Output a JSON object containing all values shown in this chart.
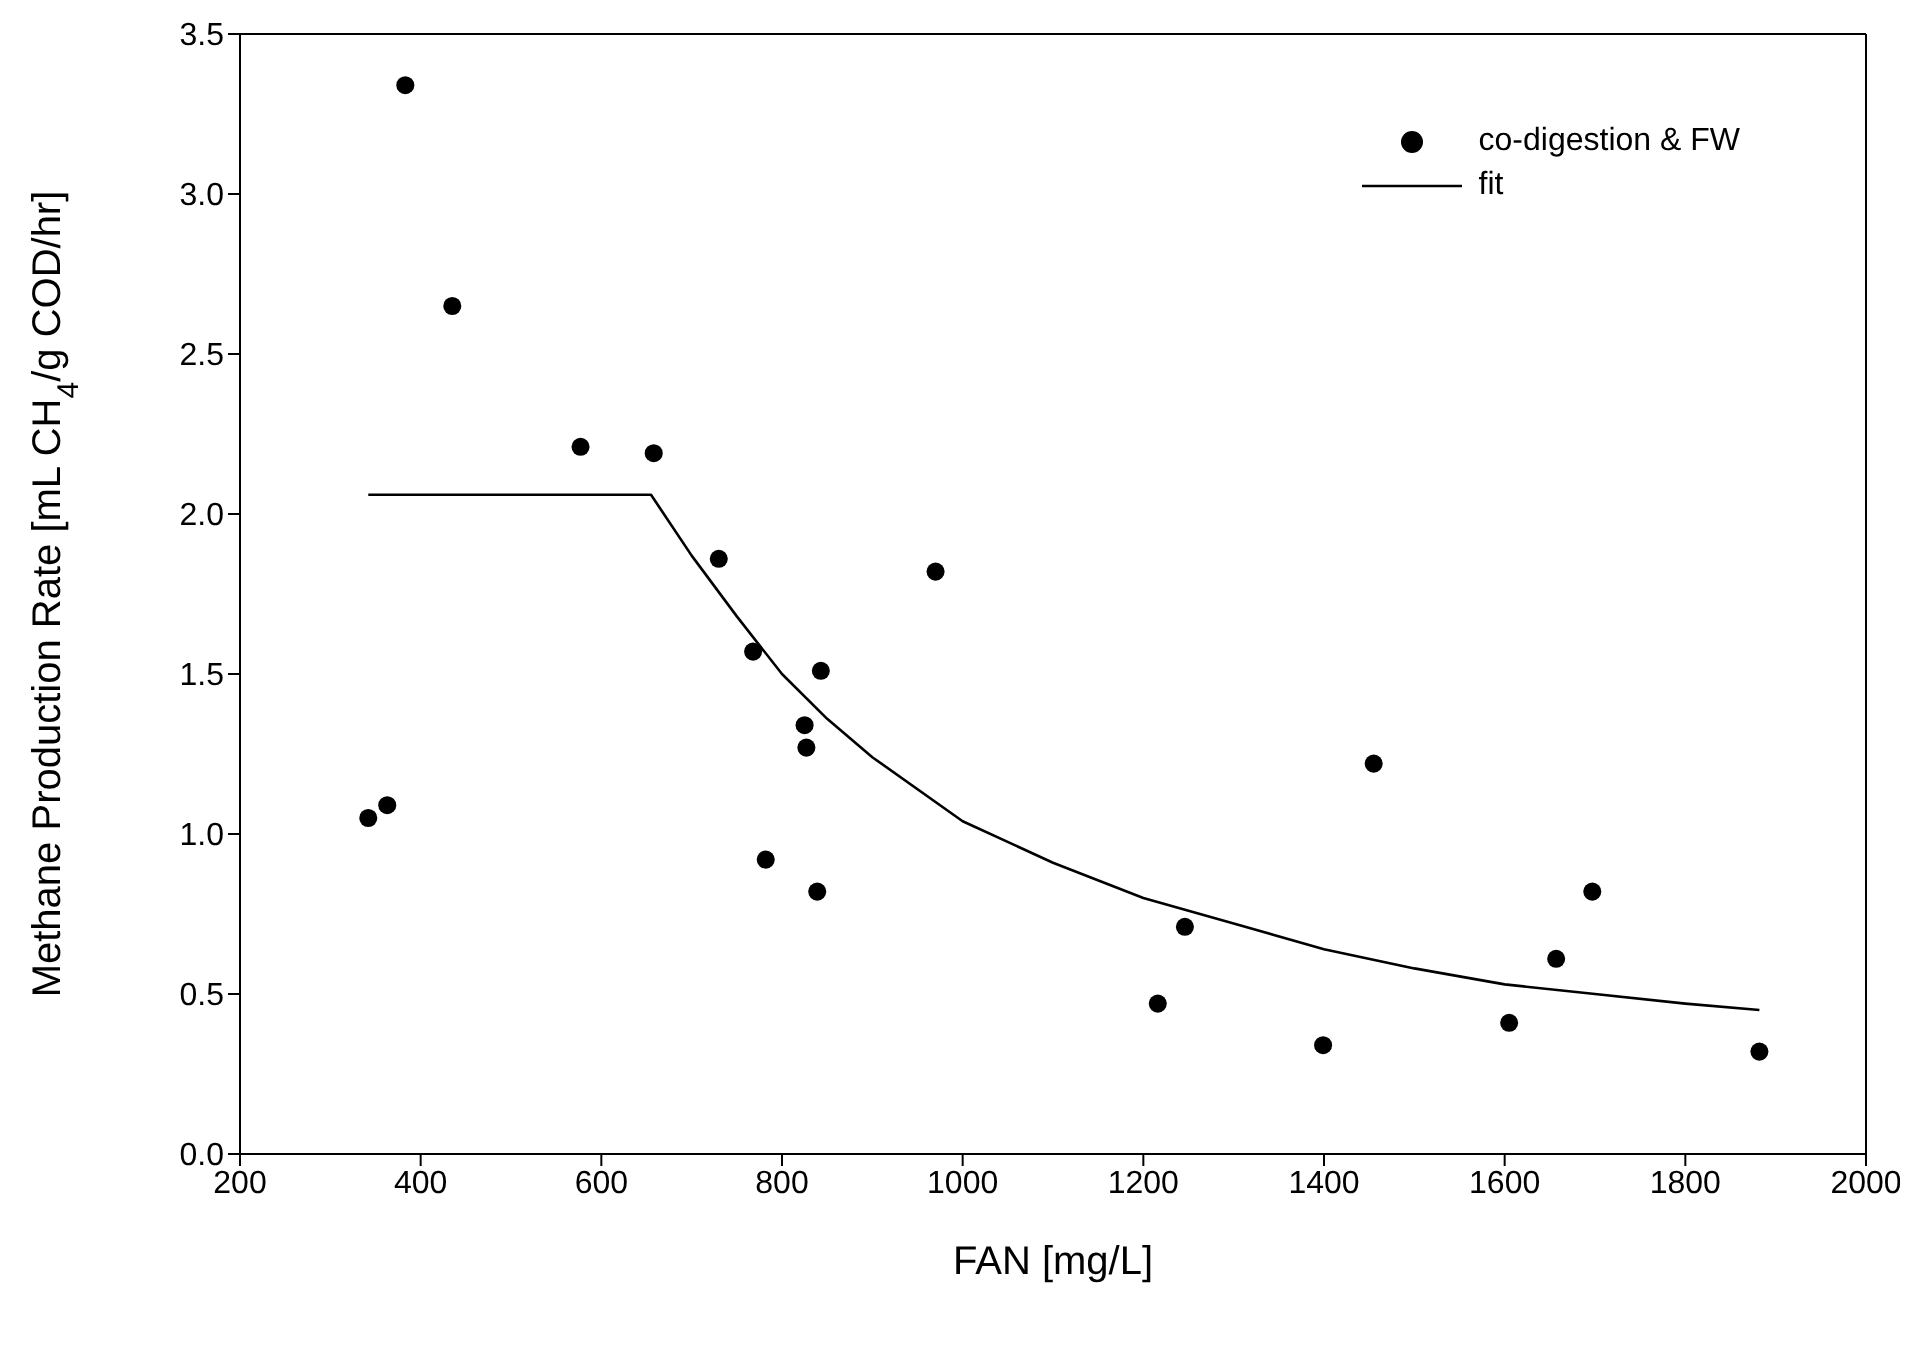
{
  "chart_data": {
    "type": "scatter",
    "xlabel": "FAN [mg/L]",
    "ylabel": "Methane Production Rate [mL CH$_{4}$/g COD/hr]",
    "xlim": [
      200,
      2000
    ],
    "xticks": [
      200,
      400,
      600,
      800,
      1000,
      1200,
      1400,
      1600,
      1800,
      2000
    ],
    "ylim": [
      0,
      3.5
    ],
    "yticks": [
      {
        "value": 0,
        "label": "0.0"
      },
      {
        "value": 0.5,
        "label": "0.5"
      },
      {
        "value": 1,
        "label": "1.0"
      },
      {
        "value": 1.5,
        "label": "1.5"
      },
      {
        "value": 2,
        "label": "2.0"
      },
      {
        "value": 2.5,
        "label": "2.5"
      },
      {
        "value": 3,
        "label": "3.0"
      },
      {
        "value": 3.5,
        "label": "3.5"
      }
    ],
    "legend": "top right",
    "series": [
      {
        "name": "co-digestion & FW",
        "color": "#000000",
        "marker": "circle",
        "x": [
          342,
          363,
          383,
          435,
          577,
          658,
          730,
          768,
          782,
          825,
          827,
          839,
          843,
          970,
          1216,
          1246,
          1399,
          1455,
          1605,
          1657,
          1697,
          1882
        ],
        "values": [
          1.05,
          1.09,
          3.34,
          2.65,
          2.21,
          2.19,
          1.86,
          1.57,
          0.92,
          1.34,
          1.27,
          0.82,
          1.51,
          1.82,
          0.47,
          0.71,
          0.34,
          1.22,
          0.41,
          0.61,
          0.82,
          0.32
        ]
      },
      {
        "name": "fit",
        "type": "line",
        "color": "#000000",
        "marker": "none",
        "line_style": "solid",
        "x": [
          342,
          655,
          700,
          750,
          800,
          850,
          900,
          1000,
          1100,
          1200,
          1300,
          1400,
          1500,
          1600,
          1700,
          1800,
          1882
        ],
        "values": [
          2.06,
          2.06,
          1.87,
          1.68,
          1.5,
          1.36,
          1.24,
          1.04,
          0.91,
          0.8,
          0.72,
          0.64,
          0.58,
          0.53,
          0.5,
          0.47,
          0.45
        ]
      }
    ]
  }
}
